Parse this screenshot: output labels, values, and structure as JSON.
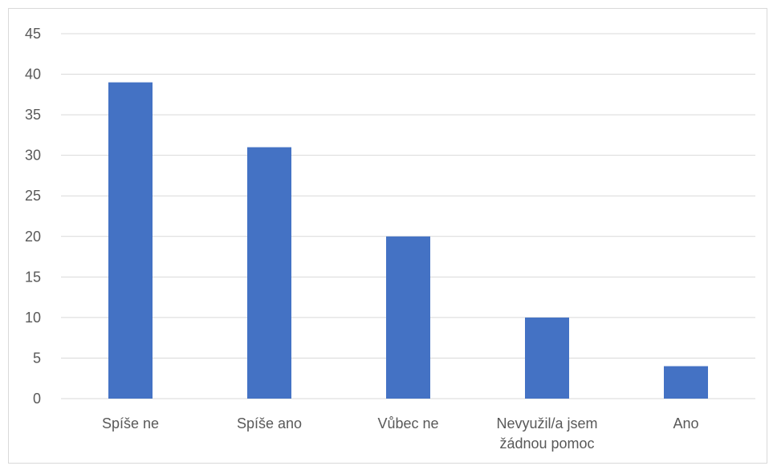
{
  "chart_data": {
    "type": "bar",
    "title": "",
    "xlabel": "",
    "ylabel": "",
    "categories": [
      [
        "Spíše ne"
      ],
      [
        "Spíše ano"
      ],
      [
        "Vůbec ne"
      ],
      [
        "Nevyužil/a jsem",
        "žádnou pomoc"
      ],
      [
        "Ano"
      ]
    ],
    "values": [
      39,
      31,
      20,
      10,
      4
    ],
    "ylim": [
      0,
      45
    ],
    "yticks": [
      0,
      5,
      10,
      15,
      20,
      25,
      30,
      35,
      40,
      45
    ],
    "grid": true,
    "legend": "none",
    "bar_color": "#4472c4",
    "grid_color": "#d9d9d9",
    "label_color": "#595959"
  }
}
